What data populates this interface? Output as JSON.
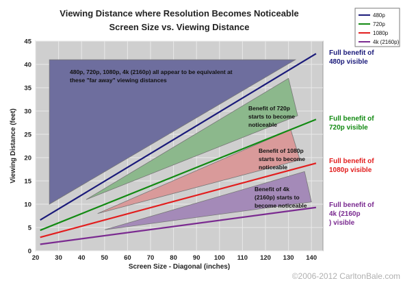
{
  "chart_data": {
    "type": "line",
    "title": "Viewing Distance where Resolution Becomes Noticeable",
    "subtitle": "Screen Size vs. Viewing Distance",
    "xlabel": "Screen Size - Diagonal (inches)",
    "ylabel": "Viewing Distance (feet)",
    "xlim": [
      20,
      145
    ],
    "ylim": [
      0,
      45
    ],
    "x_ticks": [
      20,
      30,
      40,
      50,
      60,
      70,
      80,
      90,
      100,
      110,
      120,
      130,
      140
    ],
    "y_ticks": [
      0,
      5,
      10,
      15,
      20,
      25,
      30,
      35,
      40,
      45
    ],
    "grid": true,
    "legend": "top-right",
    "series": [
      {
        "name": "480p",
        "color": "#1a1a7a",
        "x": [
          22,
          142
        ],
        "y": [
          6.6,
          42.3
        ],
        "end_label": "Full benefit of 480p visible"
      },
      {
        "name": "720p",
        "color": "#128a12",
        "x": [
          22,
          142
        ],
        "y": [
          4.4,
          28.2
        ],
        "end_label": "Full benefit of 720p visible"
      },
      {
        "name": "1080p",
        "color": "#e21d1d",
        "x": [
          22,
          142
        ],
        "y": [
          2.9,
          18.8
        ],
        "end_label": "Full benefit of 1080p visible"
      },
      {
        "name": "4k (2160p)",
        "color": "#7a2a90",
        "x": [
          22,
          142
        ],
        "y": [
          1.4,
          9.3
        ],
        "end_label": "Full benefit of 4k (2160p) visible"
      }
    ],
    "regions": [
      {
        "fill": "#6e6e9e",
        "points": [
          [
            26,
            41
          ],
          [
            133,
            41
          ],
          [
            26,
            10
          ]
        ],
        "note": "480p, 720p, 1080p, 4k (2160p) all appear to be equivalent at these \"far away\" viewing distances"
      },
      {
        "fill": "#8cb88c",
        "points": [
          [
            42,
            11
          ],
          [
            130,
            37
          ],
          [
            134,
            29
          ]
        ],
        "note": "Benefit of 720p starts to become noticeable"
      },
      {
        "fill": "#d99a9a",
        "points": [
          [
            47,
            8
          ],
          [
            131,
            26
          ],
          [
            135,
            19.5
          ]
        ],
        "note": "Benefit of 1080p starts to become noticeable"
      },
      {
        "fill": "#a48ab8",
        "points": [
          [
            50,
            4.5
          ],
          [
            137,
            17
          ],
          [
            140,
            10.5
          ]
        ],
        "note": "Benefit of 4k (2160p) starts to become noticeable"
      }
    ],
    "watermark": "©2006-2012 CarltonBale.com"
  }
}
